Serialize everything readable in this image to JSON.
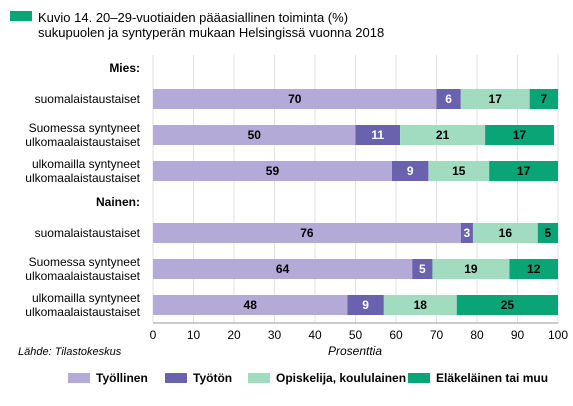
{
  "chart_data": {
    "type": "stacked-bar-horizontal",
    "title": "Kuvio 14. 20–29-vuotiaiden pääasiallinen toiminta (%)\nsukupuolen ja syntyperän mukaan Helsingissä vuonna 2018",
    "categories": [
      "Mies:",
      "suomalaistaustaiset",
      "Suomessa syntyneet\nulkomaalaistaustaiset",
      "ulkomailla syntyneet\nulkomaalaistaustaiset",
      "Nainen:",
      "suomalaistaustaiset",
      "Suomessa syntyneet\nulkomaalaistaustaiset",
      "ulkomailla syntyneet\nulkomaalaistaustaiset"
    ],
    "series": [
      {
        "name": "Työllinen",
        "color": "#b4aad7",
        "label_color": "#000000",
        "values": [
          null,
          70,
          50,
          59,
          null,
          76,
          64,
          48
        ]
      },
      {
        "name": "Työtön",
        "color": "#6a62ad",
        "label_color": "#ffffff",
        "values": [
          null,
          6,
          11,
          9,
          null,
          3,
          5,
          9
        ]
      },
      {
        "name": "Opiskelija, koululainen",
        "color": "#a2dcc0",
        "label_color": "#000000",
        "values": [
          null,
          17,
          21,
          15,
          null,
          16,
          19,
          18
        ]
      },
      {
        "name": "Eläkeläinen tai muu",
        "color": "#0aa577",
        "label_color": "#000000",
        "values": [
          null,
          7,
          17,
          17,
          null,
          5,
          12,
          25
        ]
      }
    ],
    "xlim": [
      0,
      100
    ],
    "xticks": [
      0,
      10,
      20,
      30,
      40,
      50,
      60,
      70,
      80,
      90,
      100
    ],
    "xlabel": "Prosenttia",
    "source": "Lähde: Tilastokeskus",
    "grid": true
  }
}
